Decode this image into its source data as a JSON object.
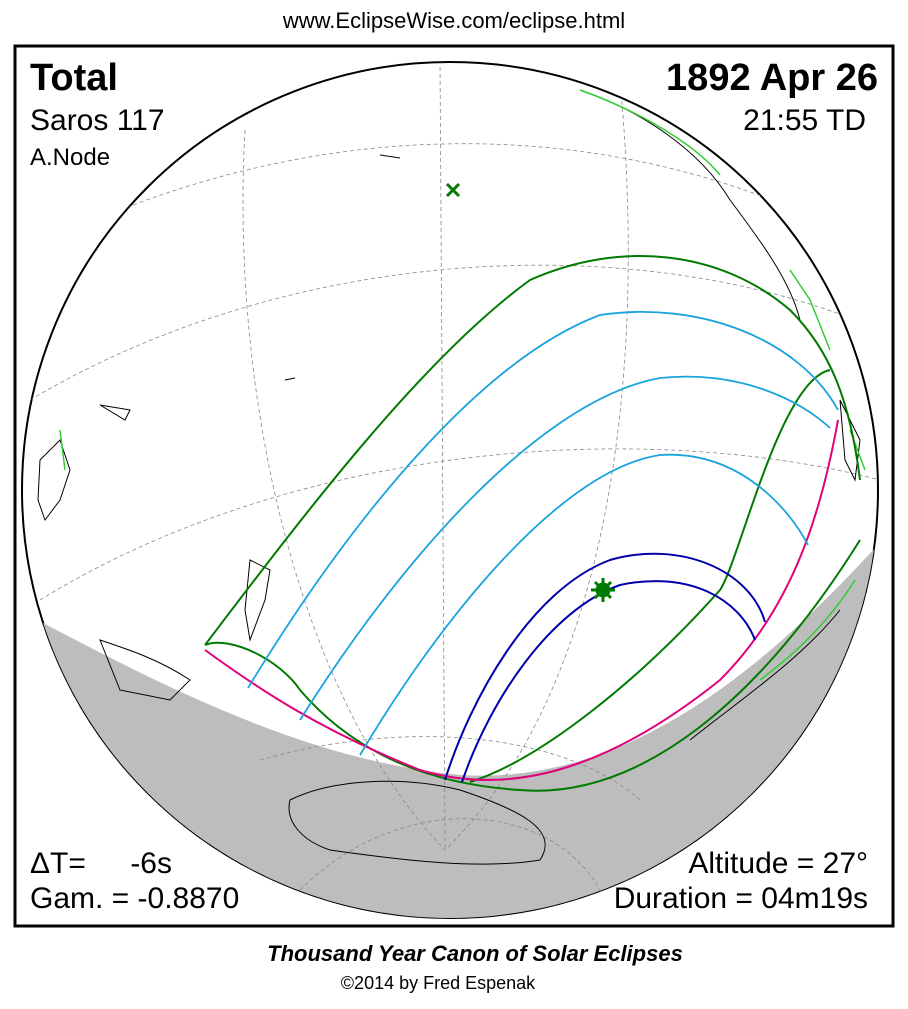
{
  "header": {
    "url": "www.EclipseWise.com/eclipse.html"
  },
  "panel": {
    "eclipse_type": "Total",
    "date": "1892 Apr 26",
    "saros": "Saros 117",
    "time": "21:55 TD",
    "node": "A.Node",
    "delta_t_label": "ΔT=",
    "delta_t_value": "-6s",
    "gamma": "Gam. = -0.8870",
    "altitude": "Altitude = 27°",
    "duration": "Duration = 04m19s"
  },
  "footer": {
    "title": "Thousand Year Canon of Solar Eclipses",
    "credit": "©2014 by Fred Espenak"
  }
}
